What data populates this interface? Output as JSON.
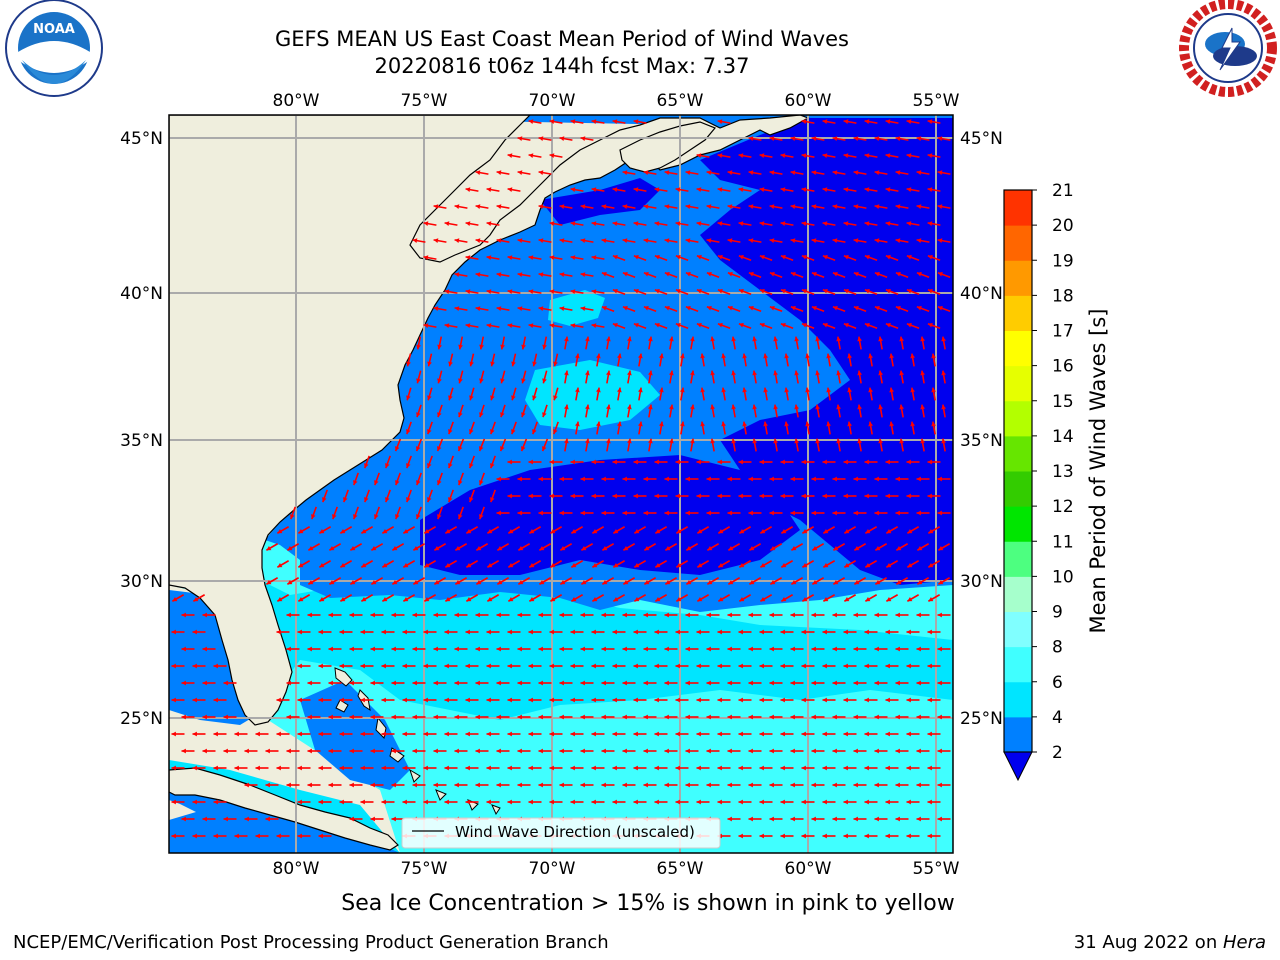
{
  "header": {
    "title": "GEFS MEAN US East Coast Mean Period of Wind Waves",
    "subtitle": "20220816 t06z 144h fcst   Max: 7.37"
  },
  "logos": {
    "left": "NOAA",
    "right": "NATIONAL WEATHER SERVICE"
  },
  "map": {
    "lon_range": [
      -85,
      -54
    ],
    "lat_range": [
      20.5,
      46
    ],
    "lon_ticks": [
      {
        "value": -80,
        "label": "80°W"
      },
      {
        "value": -75,
        "label": "75°W"
      },
      {
        "value": -70,
        "label": "70°W"
      },
      {
        "value": -65,
        "label": "65°W"
      },
      {
        "value": -60,
        "label": "60°W"
      },
      {
        "value": -55,
        "label": "55°W"
      }
    ],
    "lat_ticks": [
      {
        "value": 25,
        "label": "25°N"
      },
      {
        "value": 30,
        "label": "30°N"
      },
      {
        "value": 35,
        "label": "35°N"
      },
      {
        "value": 40,
        "label": "40°N"
      },
      {
        "value": 45,
        "label": "45°N"
      }
    ],
    "land_color": "#efeedd",
    "grid": true,
    "vector_color": "#ff0000",
    "legend_label": "Wind Wave Direction (unscaled)"
  },
  "colorbar": {
    "title": "Mean Period of Wind Waves [s]",
    "levels": [
      "2",
      "4",
      "6",
      "8",
      "9",
      "10",
      "11",
      "12",
      "13",
      "14",
      "15",
      "16",
      "17",
      "18",
      "19",
      "20",
      "21"
    ],
    "colors": [
      "#0080ff",
      "#00e5ff",
      "#40ffff",
      "#80ffff",
      "#a6ffcc",
      "#4dff80",
      "#00e600",
      "#33cc00",
      "#66e600",
      "#b3ff00",
      "#e6ff00",
      "#ffff00",
      "#ffcc00",
      "#ff9900",
      "#ff6600",
      "#ff3300",
      "#ff0000"
    ],
    "under_color": "#0000ee"
  },
  "footer": {
    "caption": "Sea Ice Concentration > 15% is shown in pink to yellow",
    "left": "NCEP/EMC/Verification Post Processing Product Generation Branch",
    "date": "31 Aug 2022 on ",
    "machine": "Hera"
  }
}
